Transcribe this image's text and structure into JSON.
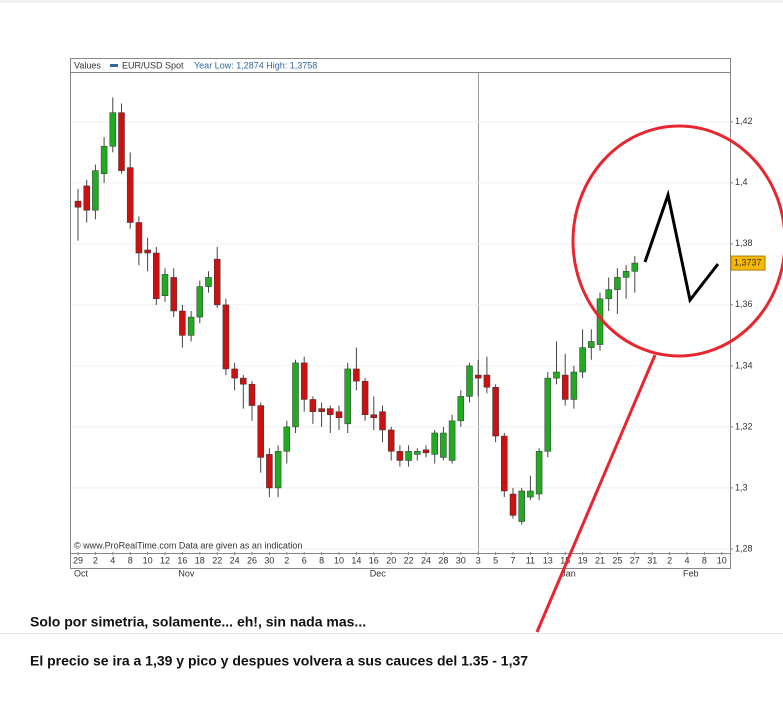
{
  "chart_data": {
    "type": "candlestick",
    "legend_label": "Values",
    "subtitle": "Year Low: 1,2874 High: 1,3758",
    "footer": "© www.ProRealTime.com Data are given as an indication",
    "categories": [
      "29",
      null,
      "2",
      null,
      "4",
      null,
      "8",
      null,
      "10",
      null,
      "12",
      null,
      "16",
      null,
      "18",
      null,
      "22",
      null,
      "24",
      null,
      "26",
      null,
      "30",
      null,
      "2",
      null,
      "6",
      null,
      "8",
      null,
      "10",
      null,
      "14",
      null,
      "16",
      null,
      "20",
      null,
      "22",
      null,
      "24",
      null,
      "28",
      null,
      "30",
      null,
      "3",
      null,
      "5",
      null,
      "7",
      null,
      "11",
      null,
      "13",
      null,
      "15",
      null,
      "19",
      null,
      "21",
      null,
      "25",
      null,
      "27",
      null,
      "31",
      null,
      "2",
      null,
      "4",
      null,
      "8",
      null,
      "10"
    ],
    "month_ticks": [
      {
        "value": 0,
        "label": "Oct"
      },
      {
        "value": 12,
        "label": "Nov"
      },
      {
        "value": 34,
        "label": "Dec"
      },
      {
        "value": 56,
        "label": "Jan"
      },
      {
        "value": 70,
        "label": "Feb"
      }
    ],
    "series": [
      {
        "name": "EUR/USD Spot",
        "color": "#336699",
        "up_color": "#22aa22",
        "down_color": "#cc1111",
        "open": [
          1.394,
          1.399,
          1.391,
          1.403,
          1.412,
          1.423,
          1.405,
          1.387,
          1.378,
          1.377,
          1.363,
          1.369,
          1.358,
          1.35,
          1.356,
          1.366,
          1.375,
          1.36,
          1.339,
          1.336,
          1.334,
          1.327,
          1.311,
          1.3,
          1.312,
          1.32,
          1.341,
          1.329,
          1.326,
          1.326,
          1.325,
          1.321,
          1.339,
          1.335,
          1.324,
          1.325,
          1.319,
          1.312,
          1.309,
          1.311,
          1.3125,
          1.311,
          1.31,
          1.309,
          1.322,
          1.33,
          1.337,
          1.337,
          1.333,
          1.317,
          1.298,
          1.289,
          1.297,
          1.298,
          1.312,
          1.336,
          1.337,
          1.329,
          1.338,
          1.346,
          1.347,
          1.362,
          1.365,
          1.369,
          1.371,
          null,
          null,
          null,
          null,
          null,
          null,
          null,
          null,
          null,
          null
        ],
        "high": [
          1.398,
          1.401,
          1.406,
          1.415,
          1.428,
          1.426,
          1.41,
          1.389,
          1.382,
          1.379,
          1.372,
          1.372,
          1.36,
          1.358,
          1.368,
          1.371,
          1.379,
          1.362,
          1.341,
          1.337,
          1.335,
          1.328,
          1.313,
          1.314,
          1.322,
          1.342,
          1.343,
          1.33,
          1.328,
          1.327,
          1.327,
          1.341,
          1.346,
          1.336,
          1.33,
          1.327,
          1.32,
          1.314,
          1.314,
          1.313,
          1.314,
          1.319,
          1.32,
          1.324,
          1.332,
          1.341,
          1.342,
          1.343,
          1.334,
          1.318,
          1.3,
          1.3,
          1.304,
          1.313,
          1.338,
          1.348,
          1.344,
          1.34,
          1.352,
          1.352,
          1.364,
          1.369,
          1.372,
          1.373,
          1.376,
          null,
          null,
          null,
          null,
          null,
          null,
          null,
          null,
          null,
          null
        ],
        "low": [
          1.381,
          1.387,
          1.388,
          1.4,
          1.41,
          1.403,
          1.385,
          1.373,
          1.371,
          1.36,
          1.361,
          1.356,
          1.346,
          1.348,
          1.354,
          1.364,
          1.359,
          1.337,
          1.332,
          1.326,
          1.322,
          1.305,
          1.297,
          1.297,
          1.308,
          1.318,
          1.325,
          1.321,
          1.32,
          1.318,
          1.319,
          1.318,
          1.332,
          1.322,
          1.319,
          1.315,
          1.309,
          1.307,
          1.307,
          1.309,
          1.31,
          1.308,
          1.309,
          1.308,
          1.32,
          1.328,
          1.33,
          1.331,
          1.315,
          1.297,
          1.29,
          1.288,
          1.296,
          1.296,
          1.31,
          1.334,
          1.327,
          1.326,
          1.336,
          1.342,
          1.345,
          1.358,
          1.357,
          1.362,
          1.364,
          null,
          null,
          null,
          null,
          null,
          null,
          null,
          null,
          null,
          null
        ],
        "close": [
          1.392,
          1.391,
          1.404,
          1.412,
          1.423,
          1.404,
          1.387,
          1.377,
          1.377,
          1.362,
          1.37,
          1.358,
          1.35,
          1.356,
          1.366,
          1.369,
          1.36,
          1.339,
          1.336,
          1.334,
          1.327,
          1.31,
          1.3,
          1.312,
          1.32,
          1.341,
          1.329,
          1.325,
          1.325,
          1.324,
          1.323,
          1.339,
          1.335,
          1.324,
          1.323,
          1.319,
          1.312,
          1.309,
          1.312,
          1.312,
          1.3115,
          1.318,
          1.318,
          1.322,
          1.33,
          1.34,
          1.336,
          1.333,
          1.317,
          1.299,
          1.291,
          1.299,
          1.299,
          1.312,
          1.336,
          1.338,
          1.329,
          1.338,
          1.346,
          1.348,
          1.362,
          1.365,
          1.369,
          1.371,
          1.3737,
          null,
          null,
          null,
          null,
          null,
          null,
          null,
          null,
          null,
          null
        ]
      }
    ],
    "last_value": {
      "value": 1.3737,
      "label": "1,3737"
    },
    "ylim": [
      1.279,
      1.436
    ],
    "yticks": [
      {
        "value": 1.28,
        "label": "1,28"
      },
      {
        "value": 1.3,
        "label": "1,3"
      },
      {
        "value": 1.32,
        "label": "1,32"
      },
      {
        "value": 1.34,
        "label": "1,34"
      },
      {
        "value": 1.36,
        "label": "1,36"
      },
      {
        "value": 1.38,
        "label": "1,38"
      },
      {
        "value": 1.4,
        "label": "1,4"
      },
      {
        "value": 1.42,
        "label": "1,42"
      }
    ],
    "grid": true,
    "annotations": [
      "Solo por simetria, solamente... eh!, sin nada mas...",
      "El precio se ira a 1,39 y pico y despues volvera a sus cauces del 1.35 - 1,37"
    ]
  }
}
